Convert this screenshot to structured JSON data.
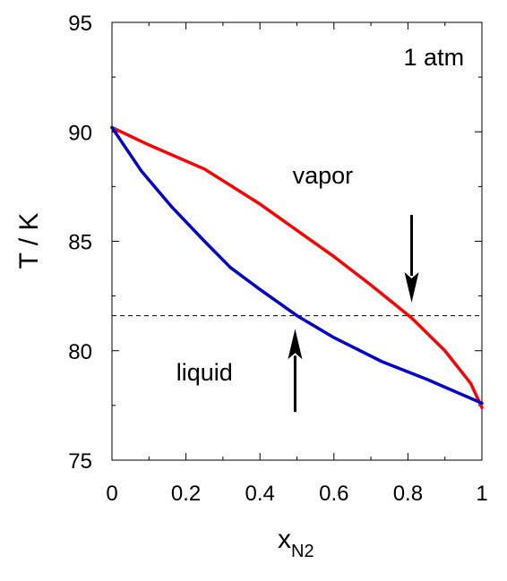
{
  "chart_data": {
    "type": "line",
    "title": "",
    "xlabel": "x",
    "xlabel_subscript": "N2",
    "ylabel": "T / K",
    "xlim": [
      0,
      1
    ],
    "ylim": [
      75,
      95
    ],
    "xticks": [
      0,
      0.2,
      0.4,
      0.6,
      0.8,
      1
    ],
    "xtick_labels": [
      "0",
      "0.2",
      "0.4",
      "0.6",
      "0.8",
      "1"
    ],
    "yticks": [
      75,
      80,
      85,
      90,
      95
    ],
    "ytick_labels": [
      "75",
      "80",
      "85",
      "90",
      "95"
    ],
    "grid": false,
    "series": [
      {
        "color": "#ff0000",
        "x": [
          0,
          0.1,
          0.25,
          0.4,
          0.5,
          0.6,
          0.7,
          0.81,
          0.9,
          0.97,
          1.0
        ],
        "y": [
          90.2,
          89.4,
          88.3,
          86.7,
          85.5,
          84.3,
          83.0,
          81.5,
          80.0,
          78.5,
          77.4
        ]
      },
      {
        "color": "#0000cc",
        "x": [
          0,
          0.08,
          0.16,
          0.25,
          0.32,
          0.4,
          0.5,
          0.6,
          0.73,
          0.85,
          1.0
        ],
        "y": [
          90.2,
          88.2,
          86.6,
          85.0,
          83.8,
          82.8,
          81.6,
          80.6,
          79.5,
          78.7,
          77.6
        ]
      }
    ],
    "reference_line": {
      "y": 81.6,
      "style": "dashed",
      "color": "#000000"
    },
    "annotations": [
      {
        "text": "1 atm",
        "x": 0.87,
        "y": 93.4
      },
      {
        "text": "vapor",
        "x": 0.57,
        "y": 88.0
      },
      {
        "text": "liquid",
        "x": 0.25,
        "y": 79.0
      }
    ],
    "arrows": [
      {
        "direction": "down",
        "x": 0.81,
        "y_from": 86.2,
        "y_to": 82.2
      },
      {
        "direction": "up",
        "x": 0.495,
        "y_from": 77.2,
        "y_to": 81.0
      }
    ]
  }
}
